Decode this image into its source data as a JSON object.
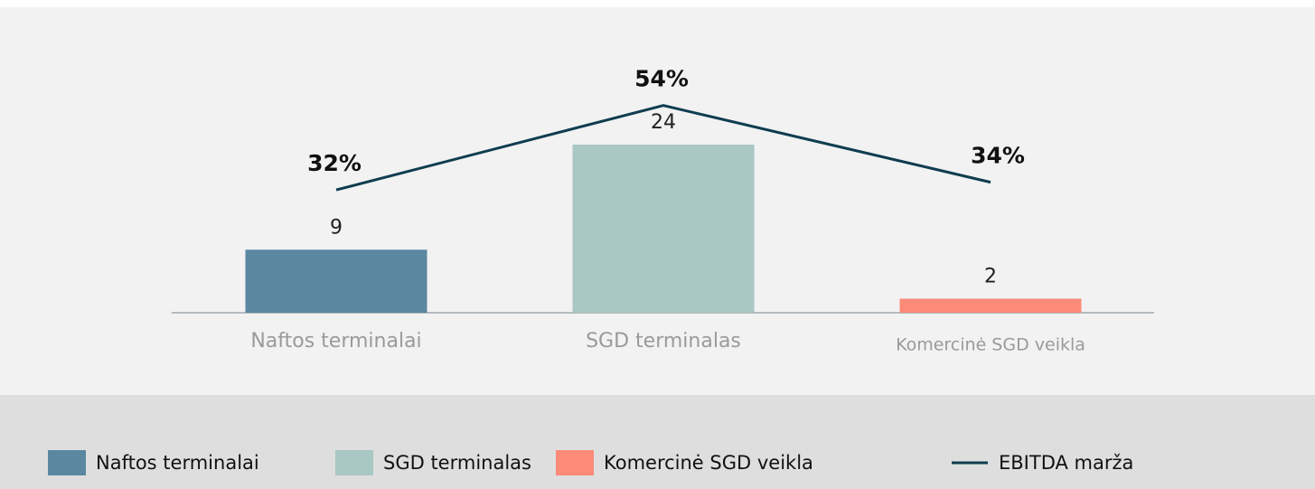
{
  "chart_data": {
    "type": "bar",
    "categories": [
      "Naftos terminalai",
      "SGD terminalas",
      "Komercinė SGD veikla"
    ],
    "ylim": [
      0,
      40
    ],
    "y2lim": [
      0,
      73
    ],
    "series": [
      {
        "type": "bar",
        "colors": [
          "#5b87a1",
          "#a9c7c3",
          "#fb8a78"
        ],
        "values": [
          9,
          24,
          2
        ]
      },
      {
        "name": "EBITDA marža",
        "type": "line",
        "axis": "y2",
        "color": "#0f3d4f",
        "values": [
          32,
          54,
          34
        ],
        "value_labels": [
          "32%",
          "54%",
          "34%"
        ]
      }
    ]
  }
}
